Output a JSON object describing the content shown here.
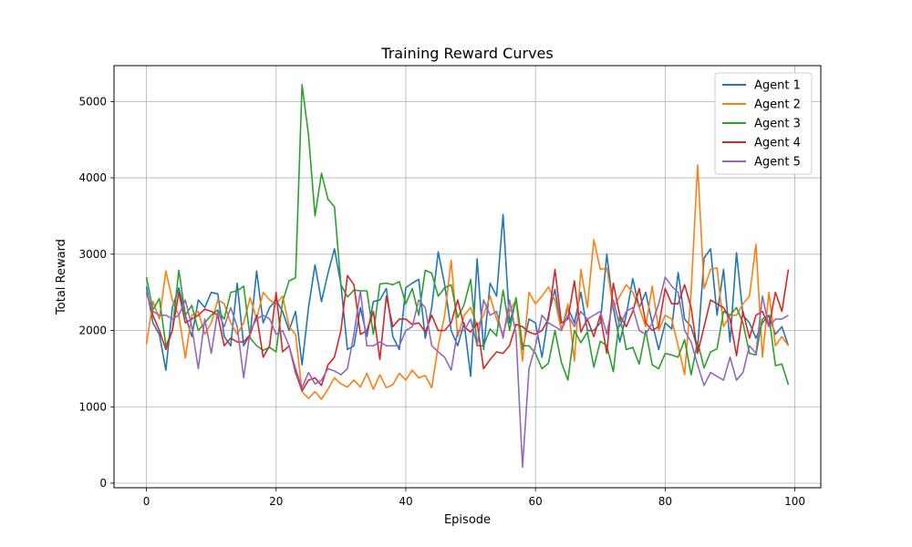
{
  "chart_data": {
    "type": "line",
    "title": "Training Reward Curves",
    "xlabel": "Episode",
    "ylabel": "Total Reward",
    "xlim": [
      -5,
      104
    ],
    "ylim": [
      -60,
      5470
    ],
    "xticks": [
      0,
      20,
      40,
      60,
      80,
      100
    ],
    "yticks": [
      0,
      1000,
      2000,
      3000,
      4000,
      5000
    ],
    "grid": true,
    "legend_position": "upper right",
    "x": [
      0,
      1,
      2,
      3,
      4,
      5,
      6,
      7,
      8,
      9,
      10,
      11,
      12,
      13,
      14,
      15,
      16,
      17,
      18,
      19,
      20,
      21,
      22,
      23,
      24,
      25,
      26,
      27,
      28,
      29,
      30,
      31,
      32,
      33,
      34,
      35,
      36,
      37,
      38,
      39,
      40,
      41,
      42,
      43,
      44,
      45,
      46,
      47,
      48,
      49,
      50,
      51,
      52,
      53,
      54,
      55,
      56,
      57,
      58,
      59,
      60,
      61,
      62,
      63,
      64,
      65,
      66,
      67,
      68,
      69,
      70,
      71,
      72,
      73,
      74,
      75,
      76,
      77,
      78,
      79,
      80,
      81,
      82,
      83,
      84,
      85,
      86,
      87,
      88,
      89,
      90,
      91,
      92,
      93,
      94,
      95,
      96,
      97,
      98,
      99
    ],
    "series": [
      {
        "name": "Agent 1",
        "color": "#1f77b4",
        "values": [
          2580,
          2100,
          1950,
          1480,
          2300,
          2560,
          2200,
          1920,
          2400,
          2300,
          2500,
          2480,
          1920,
          1800,
          2620,
          1800,
          1950,
          2780,
          2100,
          2300,
          2400,
          2250,
          2000,
          2250,
          1550,
          2300,
          2860,
          2380,
          2750,
          3070,
          2600,
          1750,
          1800,
          2300,
          1920,
          2380,
          2400,
          2550,
          1920,
          1750,
          2560,
          2620,
          2670,
          1900,
          2300,
          3030,
          2600,
          2000,
          1800,
          2100,
          1400,
          2940,
          1750,
          2620,
          2450,
          3520,
          2100,
          2400,
          1750,
          2150,
          2100,
          1650,
          2200,
          2540,
          2000,
          2300,
          2100,
          2500,
          2000,
          2000,
          2100,
          3000,
          2300,
          1850,
          2200,
          2680,
          2300,
          2500,
          2100,
          1750,
          2100,
          2020,
          2760,
          2150,
          2050,
          1760,
          2950,
          3070,
          2200,
          2800,
          1850,
          3020,
          2200,
          2100,
          1900,
          2100,
          2200,
          1950,
          2050,
          1800
        ]
      },
      {
        "name": "Agent 2",
        "color": "#ff7f0e",
        "values": [
          1820,
          2380,
          2150,
          2780,
          2400,
          2200,
          1640,
          2200,
          2250,
          1950,
          2100,
          2400,
          2350,
          2100,
          1950,
          2100,
          2430,
          2150,
          2500,
          2400,
          2350,
          2450,
          2050,
          1950,
          1200,
          1110,
          1200,
          1100,
          1230,
          1380,
          1300,
          1260,
          1350,
          1260,
          1440,
          1230,
          1420,
          1250,
          1290,
          1440,
          1350,
          1480,
          1380,
          1410,
          1250,
          1800,
          2200,
          2920,
          1920,
          2200,
          2300,
          2050,
          2200,
          2450,
          2150,
          1950,
          2250,
          2400,
          1600,
          2500,
          2350,
          2450,
          2570,
          2400,
          2000,
          2350,
          1600,
          2800,
          2300,
          3190,
          2800,
          2820,
          2300,
          2450,
          2600,
          2500,
          2300,
          2050,
          2580,
          2000,
          2200,
          2150,
          1800,
          1420,
          2500,
          4170,
          2550,
          2800,
          2820,
          2050,
          2200,
          2200,
          2350,
          2450,
          3130,
          1650,
          2500,
          1800,
          1920,
          1800
        ]
      },
      {
        "name": "Agent 3",
        "color": "#2ca02c",
        "values": [
          2700,
          2270,
          2420,
          1800,
          2000,
          2790,
          2200,
          2330,
          2000,
          2100,
          2200,
          2270,
          2150,
          2500,
          2520,
          2580,
          1900,
          1800,
          1740,
          1780,
          1720,
          2380,
          2650,
          2690,
          5220,
          4560,
          3500,
          4060,
          3720,
          3620,
          2600,
          2440,
          2530,
          2520,
          2520,
          1950,
          2610,
          2620,
          2600,
          2640,
          2350,
          2550,
          2200,
          2790,
          2750,
          2450,
          2560,
          2600,
          2170,
          2340,
          2670,
          1800,
          1800,
          2020,
          1930,
          2530,
          2000,
          2430,
          1800,
          1800,
          1700,
          1500,
          1570,
          2000,
          1580,
          1350,
          2000,
          1840,
          1980,
          1520,
          1860,
          1800,
          1460,
          2200,
          1750,
          1780,
          1560,
          2000,
          1550,
          1500,
          1700,
          1680,
          1650,
          1880,
          1420,
          1850,
          1510,
          1720,
          1760,
          2250,
          2200,
          2300,
          2100,
          1700,
          1680,
          2150,
          2200,
          1540,
          1560,
          1290
        ]
      },
      {
        "name": "Agent 4",
        "color": "#d62728",
        "values": [
          2500,
          2200,
          2000,
          1750,
          2000,
          2500,
          2100,
          2150,
          2200,
          2280,
          2250,
          2200,
          1800,
          1900,
          1850,
          1850,
          1950,
          2200,
          1650,
          1800,
          2500,
          1720,
          1800,
          1450,
          1210,
          1350,
          1380,
          1280,
          1550,
          1650,
          2000,
          2720,
          2600,
          1950,
          2000,
          2250,
          1620,
          2450,
          2050,
          2150,
          2150,
          2080,
          2100,
          1980,
          2200,
          2000,
          2000,
          2100,
          2400,
          2050,
          1980,
          2100,
          1500,
          1620,
          1720,
          1700,
          1800,
          2080,
          2050,
          1980,
          1950,
          2000,
          2150,
          2800,
          2100,
          2150,
          2650,
          1980,
          2150,
          1920,
          2200,
          1700,
          2620,
          2200,
          2050,
          2250,
          2550,
          2100,
          2000,
          2050,
          2550,
          2350,
          2350,
          2600,
          2300,
          1700,
          2050,
          2400,
          2350,
          2300,
          2150,
          1670,
          2250,
          1900,
          2200,
          2250,
          2050,
          2500,
          2250,
          2800
        ]
      },
      {
        "name": "Agent 5",
        "color": "#9467bd",
        "values": [
          2500,
          2250,
          2200,
          2200,
          2150,
          2200,
          2400,
          2050,
          1500,
          2150,
          1700,
          2250,
          2050,
          2300,
          2050,
          1380,
          2000,
          2150,
          2200,
          2150,
          1950,
          2000,
          1800,
          1500,
          1250,
          1450,
          1300,
          1350,
          1500,
          1470,
          1420,
          1500,
          1950,
          2520,
          1800,
          1800,
          1850,
          1800,
          1800,
          1800,
          2000,
          2050,
          2400,
          2300,
          1800,
          1720,
          1650,
          1480,
          2000,
          2000,
          2150,
          1800,
          2400,
          2200,
          2250,
          1900,
          2400,
          1950,
          210,
          1500,
          1800,
          2200,
          2100,
          2050,
          2000,
          2200,
          2050,
          2250,
          2150,
          2200,
          2250,
          1950,
          2400,
          2050,
          2250,
          2300,
          2000,
          1950,
          2100,
          2350,
          2700,
          2580,
          2500,
          2000,
          1850,
          1550,
          1280,
          1450,
          1400,
          1350,
          1650,
          1350,
          1450,
          1800,
          1700,
          2450,
          2050,
          2150,
          2150,
          2200
        ]
      }
    ]
  }
}
